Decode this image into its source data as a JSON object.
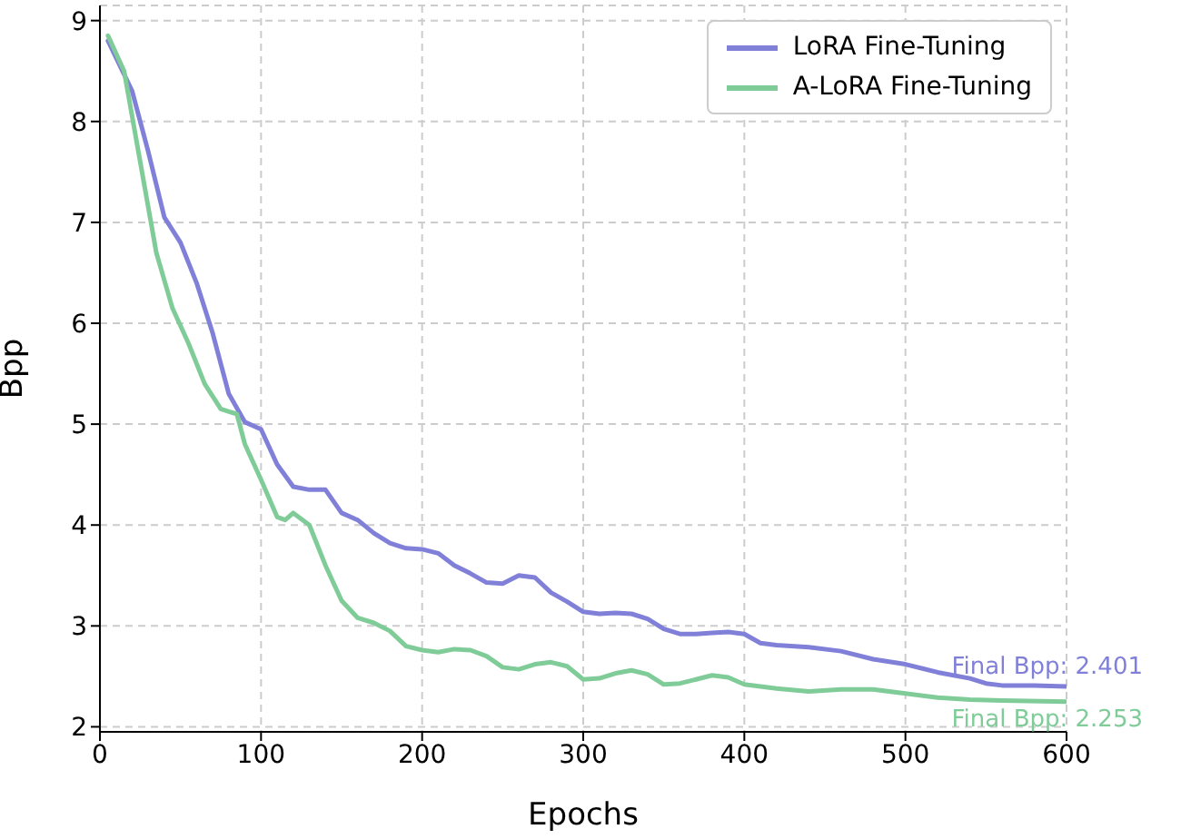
{
  "chart_data": {
    "type": "line",
    "xlabel": "Epochs",
    "ylabel": "Bpp",
    "xlim": [
      0,
      600
    ],
    "xticks": [
      0,
      100,
      200,
      300,
      400,
      500,
      600
    ],
    "ylim": [
      1.95,
      9.15
    ],
    "yticks": [
      2,
      3,
      4,
      5,
      6,
      7,
      8,
      9
    ],
    "grid": true,
    "legend": "top right",
    "line_style": "solid",
    "marker": "none",
    "series": [
      {
        "name": "LoRA Fine-Tuning",
        "color": "#8080d8",
        "x": [
          5,
          20,
          30,
          40,
          50,
          60,
          70,
          80,
          90,
          100,
          110,
          120,
          130,
          140,
          150,
          160,
          170,
          180,
          190,
          200,
          210,
          220,
          230,
          240,
          250,
          260,
          270,
          280,
          290,
          300,
          310,
          320,
          330,
          340,
          350,
          360,
          370,
          380,
          390,
          400,
          410,
          420,
          440,
          460,
          480,
          500,
          520,
          540,
          550,
          560,
          580,
          600
        ],
        "values": [
          8.8,
          8.3,
          7.7,
          7.05,
          6.8,
          6.4,
          5.9,
          5.3,
          5.02,
          4.95,
          4.6,
          4.38,
          4.35,
          4.35,
          4.12,
          4.05,
          3.92,
          3.82,
          3.77,
          3.76,
          3.72,
          3.6,
          3.52,
          3.43,
          3.42,
          3.5,
          3.48,
          3.33,
          3.24,
          3.14,
          3.12,
          3.13,
          3.12,
          3.07,
          2.97,
          2.92,
          2.92,
          2.93,
          2.94,
          2.92,
          2.83,
          2.81,
          2.79,
          2.75,
          2.67,
          2.62,
          2.54,
          2.48,
          2.43,
          2.41,
          2.41,
          2.4
        ]
      },
      {
        "name": "A-LoRA Fine-Tuning",
        "color": "#80cc99",
        "x": [
          5,
          15,
          25,
          35,
          45,
          55,
          65,
          75,
          85,
          90,
          100,
          110,
          115,
          120,
          130,
          140,
          150,
          160,
          170,
          180,
          190,
          200,
          210,
          220,
          230,
          240,
          250,
          260,
          270,
          280,
          290,
          300,
          310,
          320,
          330,
          340,
          350,
          360,
          370,
          380,
          390,
          400,
          420,
          440,
          460,
          480,
          500,
          520,
          540,
          560,
          600
        ],
        "values": [
          8.85,
          8.5,
          7.6,
          6.7,
          6.15,
          5.8,
          5.4,
          5.15,
          5.1,
          4.8,
          4.45,
          4.08,
          4.05,
          4.12,
          4.0,
          3.6,
          3.25,
          3.08,
          3.03,
          2.95,
          2.8,
          2.76,
          2.74,
          2.77,
          2.76,
          2.7,
          2.59,
          2.57,
          2.62,
          2.64,
          2.6,
          2.47,
          2.48,
          2.53,
          2.56,
          2.52,
          2.42,
          2.43,
          2.47,
          2.51,
          2.49,
          2.42,
          2.38,
          2.35,
          2.37,
          2.37,
          2.33,
          2.29,
          2.27,
          2.26,
          2.25
        ]
      }
    ],
    "annotations": [
      {
        "text": "Final Bpp: 2.401",
        "x": 600,
        "y": 2.401
      },
      {
        "text": "Final Bpp: 2.253",
        "x": 600,
        "y": 2.253
      }
    ]
  }
}
